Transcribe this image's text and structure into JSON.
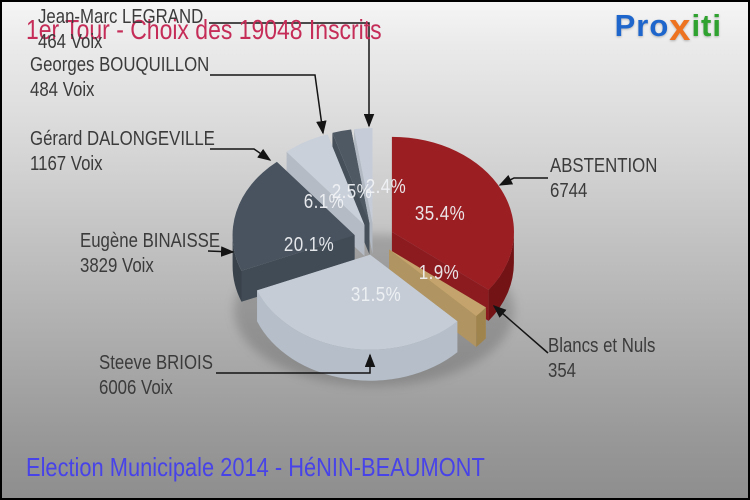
{
  "header": {
    "title": "1er Tour - Choix des 19048 Inscrits",
    "title_color": "#c52d58",
    "logo": {
      "pro": "Pro",
      "x": "x",
      "iti": "iti",
      "pro_color": "#1e66cc",
      "x_color": "#ee7320",
      "iti_color": "#2fa22f"
    }
  },
  "footer": {
    "title": "Election Municipale 2014 - HéNIN-BEAUMONT",
    "color": "#4843e9"
  },
  "chart_data": {
    "type": "pie",
    "style": "3d-exploded",
    "title": "1er Tour - Choix des 19048 Inscrits",
    "total_inscrits": 19048,
    "start_angle_deg": 0,
    "direction": "clockwise",
    "slices": [
      {
        "label": "ABSTENTION",
        "value": 6744,
        "votes_label": "6744",
        "pct": 35.4,
        "pct_label": "35.4%",
        "color": "#9b1e23",
        "side_color": "#741316"
      },
      {
        "label": "Blancs et Nuls",
        "value": 354,
        "votes_label": "354",
        "pct": 1.9,
        "pct_label": "1.9%",
        "color": "#c4a46c",
        "side_color": "#a0844e"
      },
      {
        "label": "Steeve BRIOIS",
        "value": 6006,
        "votes_label": "6006 Voix",
        "pct": 31.5,
        "pct_label": "31.5%",
        "color": "#c5ccd6",
        "side_color": "#b5bec9"
      },
      {
        "label": "Eugène BINAISSE",
        "value": 3829,
        "votes_label": "3829 Voix",
        "pct": 20.1,
        "pct_label": "20.1%",
        "color": "#48535f",
        "side_color": "#39424b"
      },
      {
        "label": "Gérard DALONGEVILLE",
        "value": 1167,
        "votes_label": "1167 Voix",
        "pct": 6.1,
        "pct_label": "6.1%",
        "color": "#c9d0da",
        "side_color": "#b8c0cb"
      },
      {
        "label": "Georges BOUQUILLON",
        "value": 484,
        "votes_label": "484 Voix",
        "pct": 2.5,
        "pct_label": "2.5%",
        "color": "#4e5964",
        "side_color": "#3d4650"
      },
      {
        "label": "Jean-Marc LEGRAND",
        "value": 464,
        "votes_label": "464 Voix",
        "pct": 2.4,
        "pct_label": "2.4%",
        "color": "#c6cdd8",
        "side_color": "#b4bdc8"
      }
    ]
  }
}
